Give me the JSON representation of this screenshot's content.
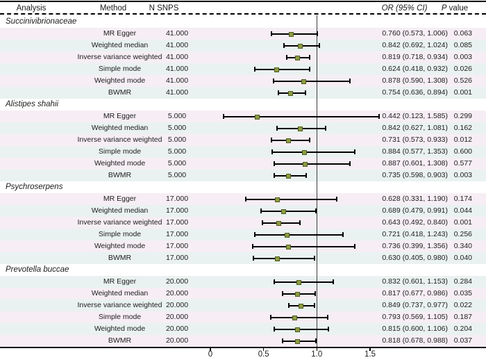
{
  "figure": {
    "header": {
      "analysis": "Analysis",
      "method": "Method",
      "n_snps": "N SNPS",
      "or_ci": "OR (95% CI)",
      "p_prefix": "P",
      "p_suffix": " value"
    },
    "colors": {
      "marker_fill": "#8e9c43",
      "marker_border": "#4d591e",
      "stripe_a": "#f6eef4",
      "stripe_b": "#e9f2f0",
      "line": "#000000",
      "ref_line": "#3c3c3c"
    }
  },
  "chart_data": {
    "type": "forest",
    "columns": [
      "Analysis",
      "Method",
      "N SNPS",
      "OR (95% CI)",
      "P value"
    ],
    "x_ticks": [
      {
        "value": 0,
        "label": "0"
      },
      {
        "value": 0.5,
        "label": "0.5"
      },
      {
        "value": 1.0,
        "label": "1.0"
      },
      {
        "value": 1.5,
        "label": "1.5"
      }
    ],
    "reference_value": 1.0,
    "x_range": [
      -0.05,
      1.65
    ],
    "groups": [
      {
        "analysis": "Succinivibrionaceae",
        "rows": [
          {
            "method": "MR Egger",
            "n_snps": "41.000",
            "or": 0.76,
            "lo": 0.573,
            "hi": 1.006,
            "or_ci": "0.760 (0.573, 1.006)",
            "p": "0.063"
          },
          {
            "method": "Weighted median",
            "n_snps": "41.000",
            "or": 0.842,
            "lo": 0.692,
            "hi": 1.024,
            "or_ci": "0.842 (0.692, 1.024)",
            "p": "0.085"
          },
          {
            "method": "Inverse variance weighted",
            "n_snps": "41.000",
            "or": 0.819,
            "lo": 0.718,
            "hi": 0.934,
            "or_ci": "0.819 (0.718, 0.934)",
            "p": "0.003"
          },
          {
            "method": "Simple mode",
            "n_snps": "41.000",
            "or": 0.624,
            "lo": 0.418,
            "hi": 0.932,
            "or_ci": "0.624 (0.418, 0.932)",
            "p": "0.026"
          },
          {
            "method": "Weighted  mode",
            "n_snps": "41.000",
            "or": 0.878,
            "lo": 0.59,
            "hi": 1.308,
            "or_ci": "0.878 (0.590, 1.308)",
            "p": "0.526"
          },
          {
            "method": "BWMR",
            "n_snps": "41.000",
            "or": 0.754,
            "lo": 0.636,
            "hi": 0.894,
            "or_ci": "0.754 (0.636, 0.894)",
            "p": "0.001"
          }
        ]
      },
      {
        "analysis": "Alistipes shahii",
        "rows": [
          {
            "method": "MR Egger",
            "n_snps": "5.000",
            "or": 0.442,
            "lo": 0.123,
            "hi": 1.585,
            "or_ci": "0.442 (0.123, 1.585)",
            "p": "0.299"
          },
          {
            "method": "Weighted median",
            "n_snps": "5.000",
            "or": 0.842,
            "lo": 0.627,
            "hi": 1.081,
            "or_ci": "0.842 (0.627, 1.081)",
            "p": "0.162"
          },
          {
            "method": "Inverse variance weighted",
            "n_snps": "5.000",
            "or": 0.731,
            "lo": 0.573,
            "hi": 0.933,
            "or_ci": "0.731 (0.573, 0.933)",
            "p": "0.012"
          },
          {
            "method": "Simple mode",
            "n_snps": "5.000",
            "or": 0.884,
            "lo": 0.577,
            "hi": 1.353,
            "or_ci": "0.884 (0.577, 1.353)",
            "p": "0.600"
          },
          {
            "method": "Weighted  mode",
            "n_snps": "5.000",
            "or": 0.887,
            "lo": 0.601,
            "hi": 1.308,
            "or_ci": "0.887 (0.601, 1.308)",
            "p": "0.577"
          },
          {
            "method": "BWMR",
            "n_snps": "5.000",
            "or": 0.735,
            "lo": 0.598,
            "hi": 0.903,
            "or_ci": "0.735 (0.598, 0.903)",
            "p": "0.003"
          }
        ]
      },
      {
        "analysis": "Psychroserpens",
        "rows": [
          {
            "method": "MR Egger",
            "n_snps": "17.000",
            "or": 0.628,
            "lo": 0.331,
            "hi": 1.19,
            "or_ci": "0.628 (0.331, 1.190)",
            "p": "0.174"
          },
          {
            "method": "Weighted median",
            "n_snps": "17.000",
            "or": 0.689,
            "lo": 0.479,
            "hi": 0.991,
            "or_ci": "0.689 (0.479, 0.991)",
            "p": "0.044"
          },
          {
            "method": "Inverse variance weighted",
            "n_snps": "17.000",
            "or": 0.643,
            "lo": 0.492,
            "hi": 0.84,
            "or_ci": "0.643 (0.492, 0.840)",
            "p": "0.001"
          },
          {
            "method": "Simple mode",
            "n_snps": "17.000",
            "or": 0.721,
            "lo": 0.418,
            "hi": 1.243,
            "or_ci": "0.721 (0.418, 1.243)",
            "p": "0.256"
          },
          {
            "method": "Weighted  mode",
            "n_snps": "17.000",
            "or": 0.736,
            "lo": 0.399,
            "hi": 1.356,
            "or_ci": "0.736 (0.399, 1.356)",
            "p": "0.340"
          },
          {
            "method": "BWMR",
            "n_snps": "17.000",
            "or": 0.63,
            "lo": 0.405,
            "hi": 0.98,
            "or_ci": "0.630 (0.405, 0.980)",
            "p": "0.040"
          }
        ]
      },
      {
        "analysis": "Prevotella buccae",
        "rows": [
          {
            "method": "MR Egger",
            "n_snps": "20.000",
            "or": 0.832,
            "lo": 0.601,
            "hi": 1.153,
            "or_ci": "0.832 (0.601, 1.153)",
            "p": "0.284"
          },
          {
            "method": "Weighted median",
            "n_snps": "20.000",
            "or": 0.817,
            "lo": 0.677,
            "hi": 0.986,
            "or_ci": "0.817 (0.677, 0.986)",
            "p": "0.035"
          },
          {
            "method": "Inverse variance weighted",
            "n_snps": "20.000",
            "or": 0.849,
            "lo": 0.737,
            "hi": 0.977,
            "or_ci": "0.849 (0.737, 0.977)",
            "p": "0.022"
          },
          {
            "method": "Simple mode",
            "n_snps": "20.000",
            "or": 0.793,
            "lo": 0.569,
            "hi": 1.105,
            "or_ci": "0.793 (0.569, 1.105)",
            "p": "0.187"
          },
          {
            "method": "Weighted  mode",
            "n_snps": "20.000",
            "or": 0.815,
            "lo": 0.6,
            "hi": 1.106,
            "or_ci": "0.815 (0.600, 1.106)",
            "p": "0.204"
          },
          {
            "method": "BWMR",
            "n_snps": "20.000",
            "or": 0.818,
            "lo": 0.678,
            "hi": 0.988,
            "or_ci": "0.818 (0.678, 0.988)",
            "p": "0.037"
          }
        ]
      }
    ]
  }
}
